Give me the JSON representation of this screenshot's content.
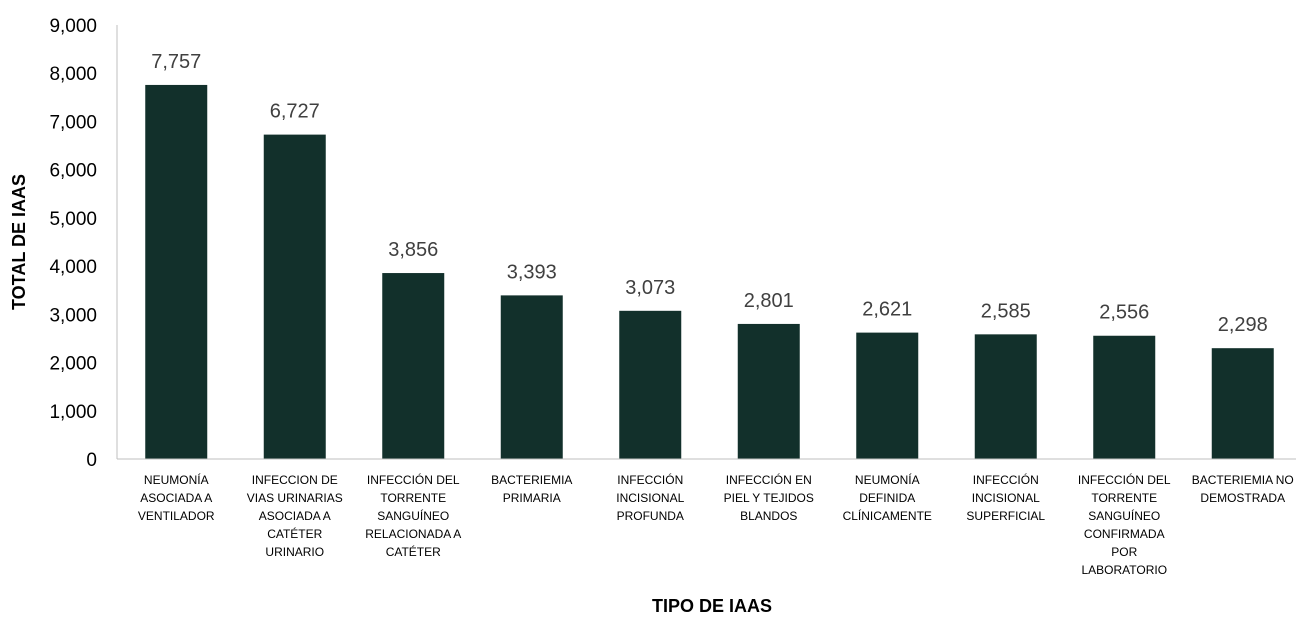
{
  "chart_data": {
    "type": "bar",
    "title": "",
    "xlabel": "TIPO DE IAAS",
    "ylabel": "TOTAL DE IAAS",
    "ylim": [
      0,
      9000
    ],
    "yticks": [
      "0",
      "1,000",
      "2,000",
      "3,000",
      "4,000",
      "5,000",
      "6,000",
      "7,000",
      "8,000",
      "9,000"
    ],
    "grid": false,
    "legend": "none",
    "bar_color": "#12302b",
    "categories": [
      [
        "NEUMONÍA",
        "ASOCIADA A",
        "VENTILADOR"
      ],
      [
        "INFECCION DE",
        "VIAS URINARIAS",
        "ASOCIADA A",
        "CATÉTER",
        "URINARIO"
      ],
      [
        "INFECCIÓN DEL",
        "TORRENTE",
        "SANGUÍNEO",
        "RELACIONADA A",
        "CATÉTER"
      ],
      [
        "BACTERIEMIA",
        "PRIMARIA"
      ],
      [
        "INFECCIÓN",
        "INCISIONAL",
        "PROFUNDA"
      ],
      [
        "INFECCIÓN EN",
        "PIEL Y TEJIDOS",
        "BLANDOS"
      ],
      [
        "NEUMONÍA",
        "DEFINIDA",
        "CLÍNICAMENTE"
      ],
      [
        "INFECCIÓN",
        "INCISIONAL",
        "SUPERFICIAL"
      ],
      [
        "INFECCIÓN DEL",
        "TORRENTE",
        "SANGUÍNEO",
        "CONFIRMADA",
        "POR",
        "LABORATORIO"
      ],
      [
        "BACTERIEMIA NO",
        "DEMOSTRADA"
      ]
    ],
    "values": [
      7757,
      6727,
      3856,
      3393,
      3073,
      2801,
      2621,
      2585,
      2556,
      2298
    ],
    "data_labels": [
      "7,757",
      "6,727",
      "3,856",
      "3,393",
      "3,073",
      "2,801",
      "2,621",
      "2,585",
      "2,556",
      "2,298"
    ]
  }
}
